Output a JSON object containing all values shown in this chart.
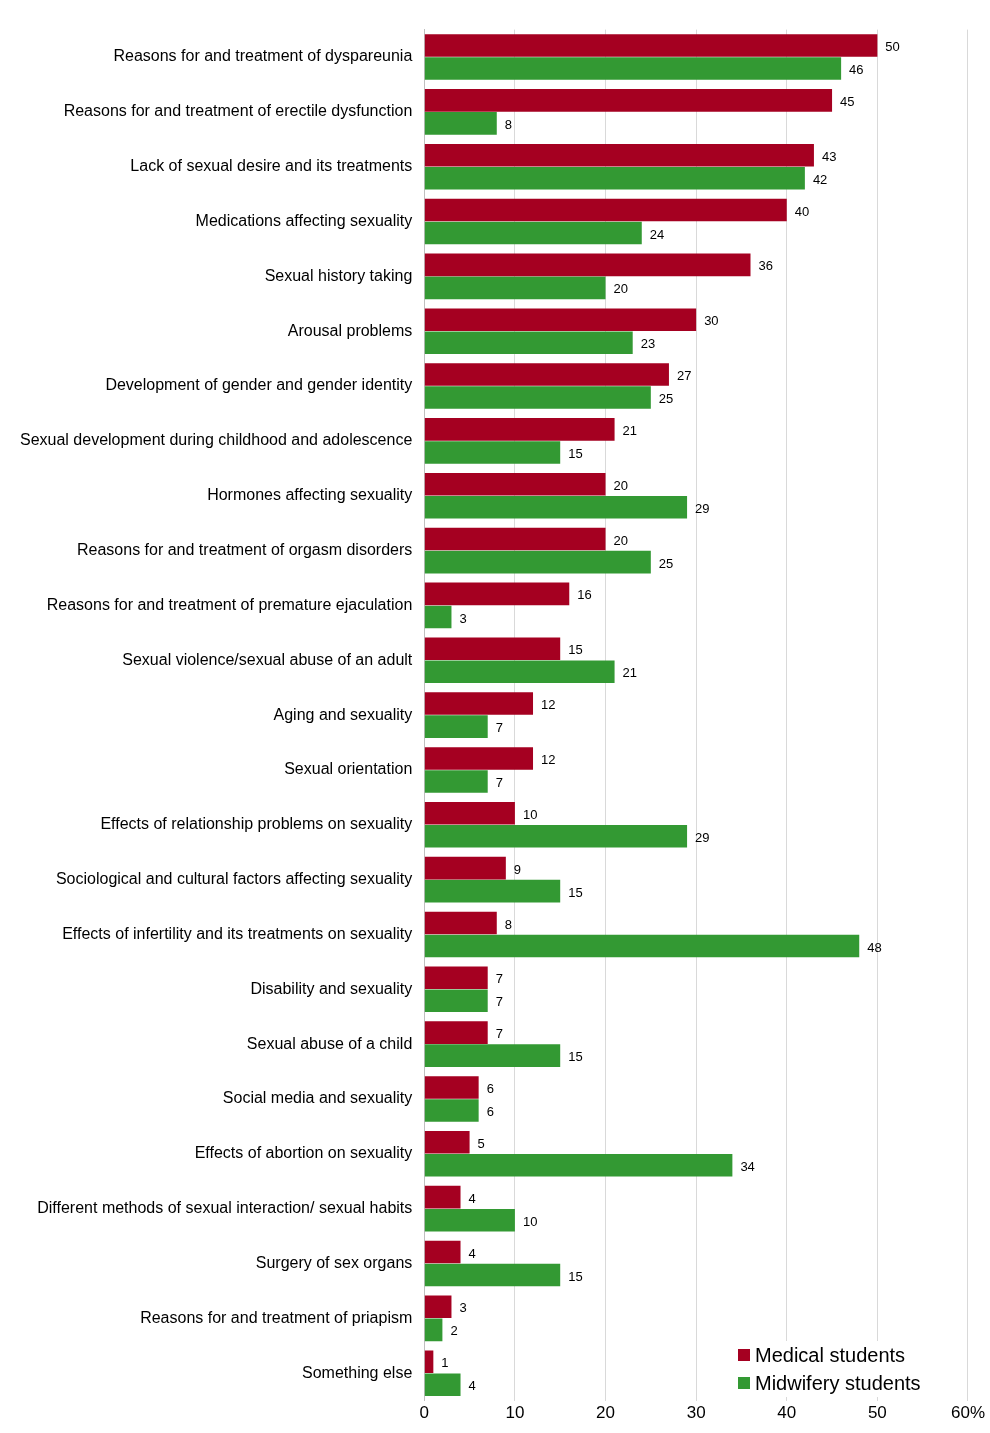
{
  "chart_data": {
    "type": "bar",
    "orientation": "horizontal",
    "categories": [
      "Reasons for and treatment of dyspareunia",
      "Reasons for and treatment of erectile dysfunction",
      "Lack of sexual desire and its treatments",
      "Medications affecting sexuality",
      "Sexual history taking",
      "Arousal problems",
      "Development of gender and gender identity",
      "Sexual development during childhood and adolescence",
      "Hormones affecting sexuality",
      "Reasons for and treatment of orgasm disorders",
      "Reasons for and treatment of premature ejaculation",
      "Sexual violence/sexual abuse of an adult",
      "Aging and sexuality",
      "Sexual orientation",
      "Effects of relationship problems on sexuality",
      "Sociological and cultural factors affecting sexuality",
      "Effects of infertility and its treatments on sexuality",
      "Disability and sexuality",
      "Sexual abuse of a child",
      "Social media and sexuality",
      "Effects of abortion on sexuality",
      "Different methods of sexual interaction/ sexual habits",
      "Surgery of sex organs",
      "Reasons for and treatment of priapism",
      "Something else"
    ],
    "series": [
      {
        "name": "Medical students",
        "color": "#a50021",
        "values": [
          50,
          45,
          43,
          40,
          36,
          30,
          27,
          21,
          20,
          20,
          16,
          15,
          12,
          12,
          10,
          9,
          8,
          7,
          7,
          6,
          5,
          4,
          4,
          3,
          1
        ]
      },
      {
        "name": "Midwifery students",
        "color": "#339933",
        "values": [
          46,
          8,
          42,
          24,
          20,
          23,
          25,
          15,
          29,
          25,
          3,
          21,
          7,
          7,
          29,
          15,
          48,
          7,
          15,
          6,
          34,
          10,
          15,
          2,
          4
        ]
      }
    ],
    "xlim": [
      0,
      60
    ],
    "xticks": [
      0,
      10,
      20,
      30,
      40,
      50,
      {
        "value": 60,
        "label": "60%"
      }
    ],
    "grid": "x",
    "legend": "bottom right",
    "data_labels": true
  }
}
